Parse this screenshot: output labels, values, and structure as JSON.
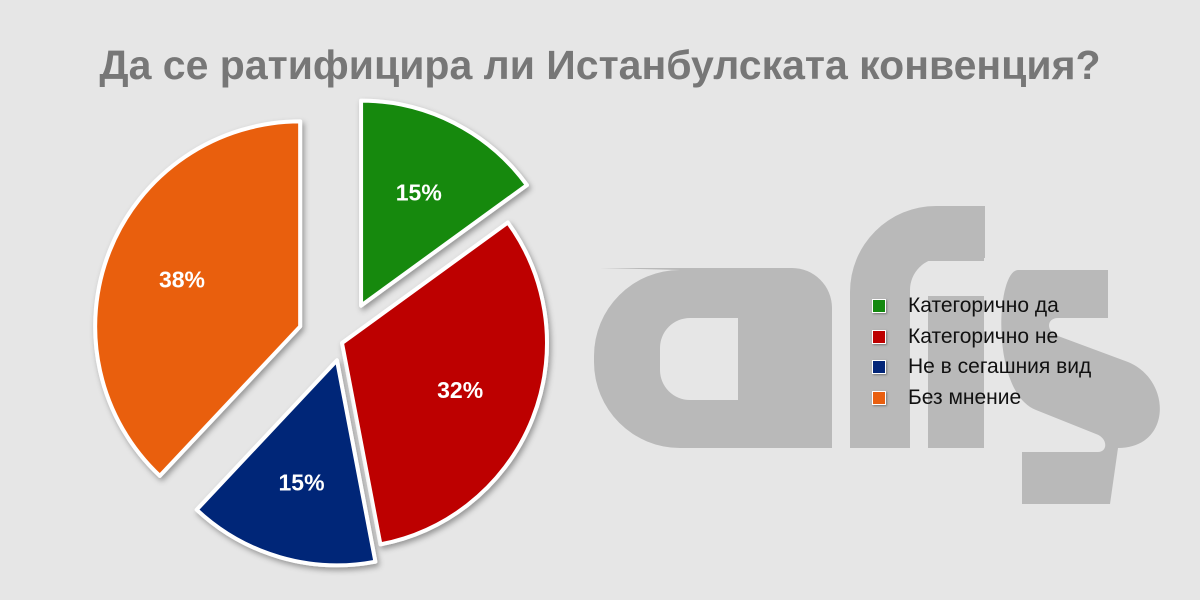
{
  "chart_data": {
    "type": "pie",
    "title": "Да се ратифицира ли Истанбулската конвенция?",
    "categories": [
      "Категорично да",
      "Категорично не",
      "Не в сегашния вид",
      "Без мнение"
    ],
    "values": [
      15,
      32,
      15,
      38
    ],
    "data_labels": [
      "15%",
      "32%",
      "15%",
      "38%"
    ],
    "colors": [
      "#13890f",
      "#bd0000",
      "#022578",
      "#e95f10"
    ],
    "legend_position": "right"
  },
  "watermark": {
    "text": "afis",
    "color": "#b9b9b9"
  }
}
